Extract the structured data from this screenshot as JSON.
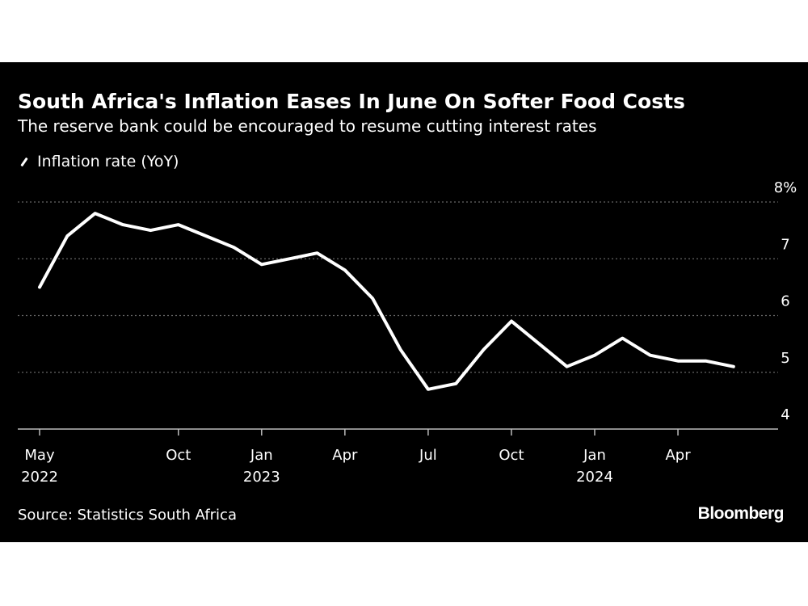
{
  "header": {
    "title": "South Africa's Inflation Eases In June On Softer Food Costs",
    "subtitle": "The reserve bank could be encouraged to resume cutting interest rates"
  },
  "footer": {
    "source": "Source: Statistics South Africa",
    "brand": "Bloomberg"
  },
  "colors": {
    "background": "#000000",
    "line": "#ffffff",
    "grid": "#666666"
  },
  "chart_data": {
    "type": "line",
    "title": "South Africa's Inflation Eases In June On Softer Food Costs",
    "subtitle": "The reserve bank could be encouraged to resume cutting interest rates",
    "xlabel": "",
    "ylabel": "",
    "ylim": [
      4,
      8
    ],
    "y_ticks": [
      {
        "value": 8,
        "label": "8%"
      },
      {
        "value": 7,
        "label": "7"
      },
      {
        "value": 6,
        "label": "6"
      },
      {
        "value": 5,
        "label": "5"
      },
      {
        "value": 4,
        "label": "4"
      }
    ],
    "x_ticks": [
      {
        "date": "2022-05",
        "label": "May",
        "sublabel": "2022"
      },
      {
        "date": "2022-10",
        "label": "Oct",
        "sublabel": ""
      },
      {
        "date": "2023-01",
        "label": "Jan",
        "sublabel": "2023"
      },
      {
        "date": "2023-04",
        "label": "Apr",
        "sublabel": ""
      },
      {
        "date": "2023-07",
        "label": "Jul",
        "sublabel": ""
      },
      {
        "date": "2023-10",
        "label": "Oct",
        "sublabel": ""
      },
      {
        "date": "2024-01",
        "label": "Jan",
        "sublabel": "2024"
      },
      {
        "date": "2024-04",
        "label": "Apr",
        "sublabel": ""
      }
    ],
    "grid": true,
    "legend": "top-left",
    "series": [
      {
        "name": "Inflation rate (YoY)",
        "x": [
          "2022-05",
          "2022-06",
          "2022-07",
          "2022-08",
          "2022-09",
          "2022-10",
          "2022-11",
          "2022-12",
          "2023-01",
          "2023-02",
          "2023-03",
          "2023-04",
          "2023-05",
          "2023-06",
          "2023-07",
          "2023-08",
          "2023-09",
          "2023-10",
          "2023-11",
          "2023-12",
          "2024-01",
          "2024-02",
          "2024-03",
          "2024-04",
          "2024-05",
          "2024-06"
        ],
        "values": [
          6.5,
          7.4,
          7.8,
          7.6,
          7.5,
          7.6,
          7.4,
          7.2,
          6.9,
          7.0,
          7.1,
          6.8,
          6.3,
          5.4,
          4.7,
          4.8,
          5.4,
          5.9,
          5.5,
          5.1,
          5.3,
          5.6,
          5.3,
          5.2,
          5.2,
          5.1
        ]
      }
    ]
  }
}
